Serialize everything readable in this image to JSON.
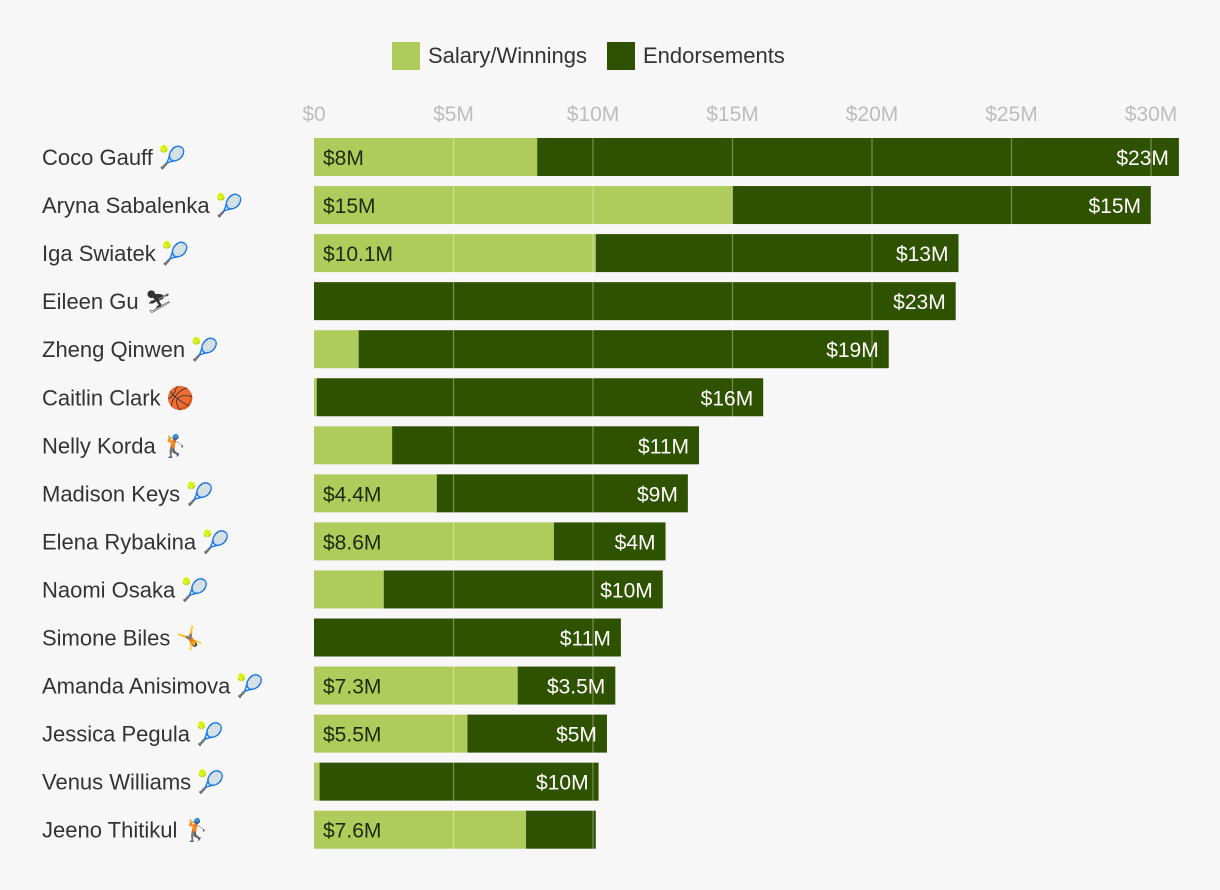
{
  "chart_data": {
    "type": "bar",
    "orientation": "horizontal",
    "stacked": true,
    "title": "",
    "xlabel": "",
    "ylabel": "",
    "xlim": [
      0,
      32
    ],
    "xticks": [
      0,
      5,
      10,
      15,
      20,
      25,
      30
    ],
    "xtick_labels": [
      "$0",
      "$5M",
      "$10M",
      "$15M",
      "$20M",
      "$25M",
      "$30M"
    ],
    "grid": true,
    "legend_position": "top",
    "colors": {
      "salary": "#aecb5c",
      "endorsements": "#2f5200"
    },
    "series": [
      {
        "name": "Salary/Winnings",
        "key": "salary"
      },
      {
        "name": "Endorsements",
        "key": "endorsements"
      }
    ],
    "athletes": [
      {
        "name": "Coco Gauff",
        "icon": "tennis-icon",
        "glyph": "🎾",
        "salary": 8,
        "salary_label": "$8M",
        "endorsements": 23,
        "endorsements_label": "$23M"
      },
      {
        "name": "Aryna Sabalenka",
        "icon": "tennis-icon",
        "glyph": "🎾",
        "salary": 15,
        "salary_label": "$15M",
        "endorsements": 15,
        "endorsements_label": "$15M"
      },
      {
        "name": "Iga Swiatek",
        "icon": "tennis-icon",
        "glyph": "🎾",
        "salary": 10.1,
        "salary_label": "$10.1M",
        "endorsements": 13,
        "endorsements_label": "$13M"
      },
      {
        "name": "Eileen Gu",
        "icon": "skiing-icon",
        "glyph": "⛷",
        "salary": 0,
        "salary_label": "",
        "endorsements": 23,
        "endorsements_label": "$23M"
      },
      {
        "name": "Zheng Qinwen",
        "icon": "tennis-icon",
        "glyph": "🎾",
        "salary": 1.6,
        "salary_label": "",
        "endorsements": 19,
        "endorsements_label": "$19M"
      },
      {
        "name": "Caitlin Clark",
        "icon": "basketball-icon",
        "glyph": "🏀",
        "salary": 0.1,
        "salary_label": "",
        "endorsements": 16,
        "endorsements_label": "$16M"
      },
      {
        "name": "Nelly Korda",
        "icon": "golf-icon",
        "glyph": "🏌",
        "salary": 2.8,
        "salary_label": "",
        "endorsements": 11,
        "endorsements_label": "$11M"
      },
      {
        "name": "Madison Keys",
        "icon": "tennis-icon",
        "glyph": "🎾",
        "salary": 4.4,
        "salary_label": "$4.4M",
        "endorsements": 9,
        "endorsements_label": "$9M"
      },
      {
        "name": "Elena Rybakina",
        "icon": "tennis-icon",
        "glyph": "🎾",
        "salary": 8.6,
        "salary_label": "$8.6M",
        "endorsements": 4,
        "endorsements_label": "$4M"
      },
      {
        "name": "Naomi Osaka",
        "icon": "tennis-icon",
        "glyph": "🎾",
        "salary": 2.5,
        "salary_label": "",
        "endorsements": 10,
        "endorsements_label": "$10M"
      },
      {
        "name": "Simone Biles",
        "icon": "gymnastics-icon",
        "glyph": "🤸",
        "salary": 0,
        "salary_label": "",
        "endorsements": 11,
        "endorsements_label": "$11M"
      },
      {
        "name": "Amanda Anisimova",
        "icon": "tennis-icon",
        "glyph": "🎾",
        "salary": 7.3,
        "salary_label": "$7.3M",
        "endorsements": 3.5,
        "endorsements_label": "$3.5M"
      },
      {
        "name": "Jessica Pegula",
        "icon": "tennis-icon",
        "glyph": "🎾",
        "salary": 5.5,
        "salary_label": "$5.5M",
        "endorsements": 5,
        "endorsements_label": "$5M"
      },
      {
        "name": "Venus Williams",
        "icon": "tennis-icon",
        "glyph": "🎾",
        "salary": 0.2,
        "salary_label": "",
        "endorsements": 10,
        "endorsements_label": "$10M"
      },
      {
        "name": "Jeeno Thitikul",
        "icon": "golf-icon",
        "glyph": "🏌",
        "salary": 7.6,
        "salary_label": "$7.6M",
        "endorsements": 2.5,
        "endorsements_label": ""
      }
    ]
  }
}
